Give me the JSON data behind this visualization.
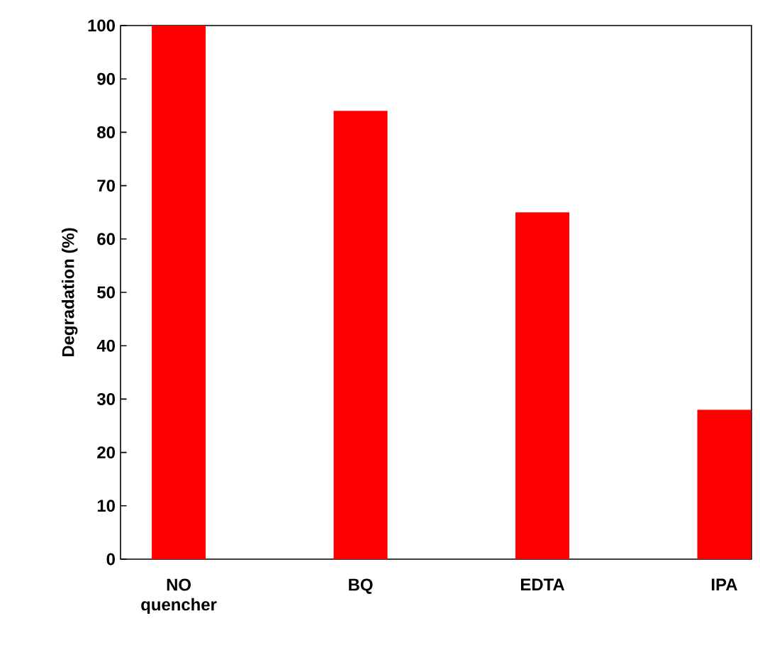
{
  "chart_data": {
    "type": "bar",
    "ylabel": "Degradation (%)",
    "categories": [
      "NO quencher",
      "BQ",
      "EDTA",
      "IPA"
    ],
    "values": [
      100,
      84,
      65,
      28
    ],
    "color": "#ff0000",
    "ylim": [
      0,
      100
    ],
    "yticks": [
      0,
      10,
      20,
      30,
      40,
      50,
      60,
      70,
      80,
      90,
      100
    ]
  }
}
